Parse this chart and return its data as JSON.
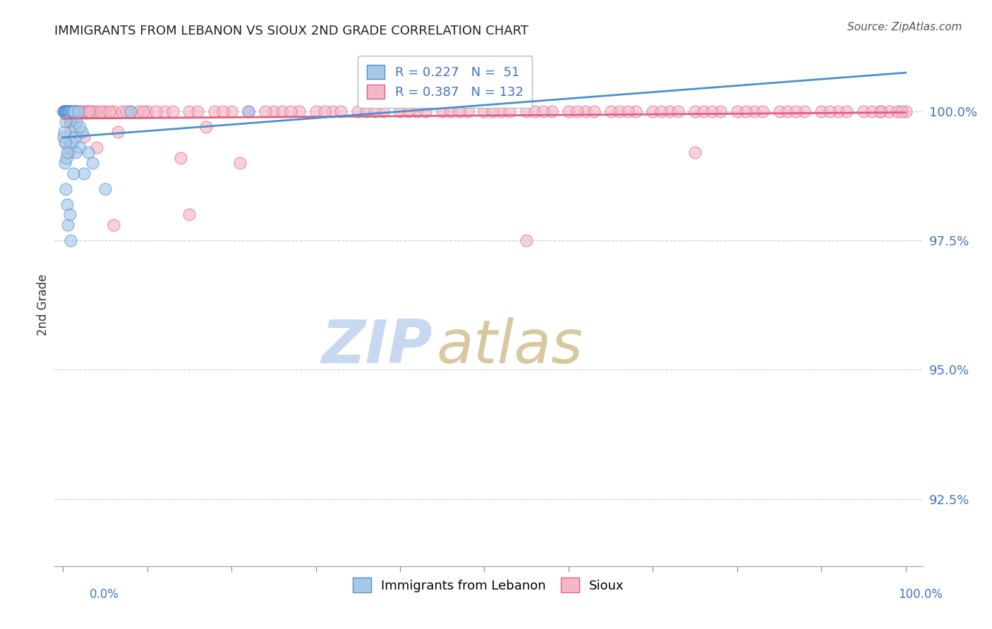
{
  "title": "IMMIGRANTS FROM LEBANON VS SIOUX 2ND GRADE CORRELATION CHART",
  "source": "Source: ZipAtlas.com",
  "ylabel_label": "2nd Grade",
  "ytick_labels": [
    "92.5%",
    "95.0%",
    "97.5%",
    "100.0%"
  ],
  "ytick_values": [
    92.5,
    95.0,
    97.5,
    100.0
  ],
  "ylim": [
    91.2,
    101.3
  ],
  "xlim": [
    -1.0,
    102.0
  ],
  "legend_r1": "R = 0.227",
  "legend_n1": "N =  51",
  "legend_r2": "R = 0.387",
  "legend_n2": "N = 132",
  "color_blue": "#a8c8e8",
  "color_pink": "#f4b8c8",
  "color_blue_dark": "#4a90d0",
  "color_pink_dark": "#e06080",
  "color_axis_labels": "#4472c4",
  "watermark_zip": "#c8d8f0",
  "watermark_atlas": "#d8c8a0",
  "blue_scatter_x": [
    0.1,
    0.15,
    0.2,
    0.25,
    0.3,
    0.35,
    0.4,
    0.45,
    0.5,
    0.55,
    0.6,
    0.65,
    0.7,
    0.75,
    0.8,
    0.85,
    0.9,
    0.95,
    1.0,
    1.1,
    1.2,
    1.3,
    1.4,
    1.5,
    1.6,
    1.8,
    2.0,
    2.2,
    2.5,
    3.0,
    0.1,
    0.2,
    0.3,
    0.4,
    0.5,
    0.6,
    0.7,
    0.8,
    0.9,
    1.0,
    1.2,
    1.5,
    2.0,
    3.5,
    5.0,
    8.0,
    22.0,
    0.15,
    0.25,
    0.35,
    0.45
  ],
  "blue_scatter_y": [
    100.0,
    100.0,
    100.0,
    100.0,
    100.0,
    100.0,
    100.0,
    100.0,
    100.0,
    100.0,
    100.0,
    100.0,
    100.0,
    100.0,
    100.0,
    100.0,
    99.8,
    99.9,
    100.0,
    100.0,
    100.0,
    100.0,
    99.7,
    99.5,
    99.8,
    100.0,
    99.3,
    99.6,
    98.8,
    99.2,
    99.5,
    99.0,
    98.5,
    99.1,
    98.2,
    97.8,
    99.3,
    98.0,
    97.5,
    99.4,
    98.8,
    99.2,
    99.7,
    99.0,
    98.5,
    100.0,
    100.0,
    99.6,
    99.4,
    99.8,
    99.2
  ],
  "pink_scatter_x": [
    0.1,
    0.2,
    0.3,
    0.4,
    0.5,
    0.6,
    0.7,
    0.8,
    0.9,
    1.0,
    1.2,
    1.4,
    1.6,
    1.8,
    2.0,
    2.5,
    3.0,
    3.5,
    4.0,
    5.0,
    6.0,
    7.0,
    8.0,
    9.0,
    10.0,
    12.0,
    15.0,
    18.0,
    20.0,
    22.0,
    25.0,
    28.0,
    30.0,
    32.0,
    35.0,
    38.0,
    40.0,
    42.0,
    45.0,
    48.0,
    50.0,
    52.0,
    55.0,
    58.0,
    60.0,
    62.0,
    65.0,
    68.0,
    70.0,
    72.0,
    75.0,
    78.0,
    80.0,
    82.0,
    85.0,
    88.0,
    90.0,
    92.0,
    95.0,
    97.0,
    98.0,
    99.0,
    100.0,
    0.15,
    0.25,
    0.35,
    0.45,
    0.55,
    0.65,
    0.75,
    0.85,
    1.1,
    1.3,
    1.5,
    1.7,
    2.2,
    2.8,
    3.2,
    4.5,
    5.5,
    7.5,
    11.0,
    13.0,
    16.0,
    24.0,
    33.0,
    43.0,
    53.0,
    63.0,
    73.0,
    83.0,
    93.0,
    0.8,
    2.5,
    6.5,
    9.5,
    17.0,
    26.0,
    36.0,
    46.0,
    56.0,
    66.0,
    76.0,
    86.0,
    96.0,
    0.3,
    0.7,
    4.0,
    14.0,
    19.0,
    27.0,
    37.0,
    47.0,
    57.0,
    67.0,
    77.0,
    87.0,
    97.0,
    0.9,
    6.0,
    21.0,
    31.0,
    41.0,
    51.0,
    61.0,
    71.0,
    81.0,
    91.0,
    99.5,
    15.0,
    55.0,
    75.0
  ],
  "pink_scatter_y": [
    100.0,
    100.0,
    100.0,
    100.0,
    100.0,
    100.0,
    100.0,
    100.0,
    100.0,
    100.0,
    100.0,
    100.0,
    100.0,
    100.0,
    100.0,
    100.0,
    100.0,
    100.0,
    100.0,
    100.0,
    100.0,
    100.0,
    100.0,
    100.0,
    100.0,
    100.0,
    100.0,
    100.0,
    100.0,
    100.0,
    100.0,
    100.0,
    100.0,
    100.0,
    100.0,
    100.0,
    100.0,
    100.0,
    100.0,
    100.0,
    100.0,
    100.0,
    100.0,
    100.0,
    100.0,
    100.0,
    100.0,
    100.0,
    100.0,
    100.0,
    100.0,
    100.0,
    100.0,
    100.0,
    100.0,
    100.0,
    100.0,
    100.0,
    100.0,
    100.0,
    100.0,
    100.0,
    100.0,
    100.0,
    100.0,
    100.0,
    100.0,
    100.0,
    100.0,
    100.0,
    100.0,
    100.0,
    100.0,
    100.0,
    100.0,
    100.0,
    100.0,
    100.0,
    100.0,
    100.0,
    100.0,
    100.0,
    100.0,
    100.0,
    100.0,
    100.0,
    100.0,
    100.0,
    100.0,
    100.0,
    100.0,
    100.0,
    99.8,
    99.5,
    99.6,
    100.0,
    99.7,
    100.0,
    100.0,
    100.0,
    100.0,
    100.0,
    100.0,
    100.0,
    100.0,
    99.4,
    99.2,
    99.3,
    99.1,
    100.0,
    100.0,
    100.0,
    100.0,
    100.0,
    100.0,
    100.0,
    100.0,
    100.0,
    99.6,
    97.8,
    99.0,
    100.0,
    100.0,
    100.0,
    100.0,
    100.0,
    100.0,
    100.0,
    100.0,
    98.0,
    97.5,
    99.2
  ]
}
